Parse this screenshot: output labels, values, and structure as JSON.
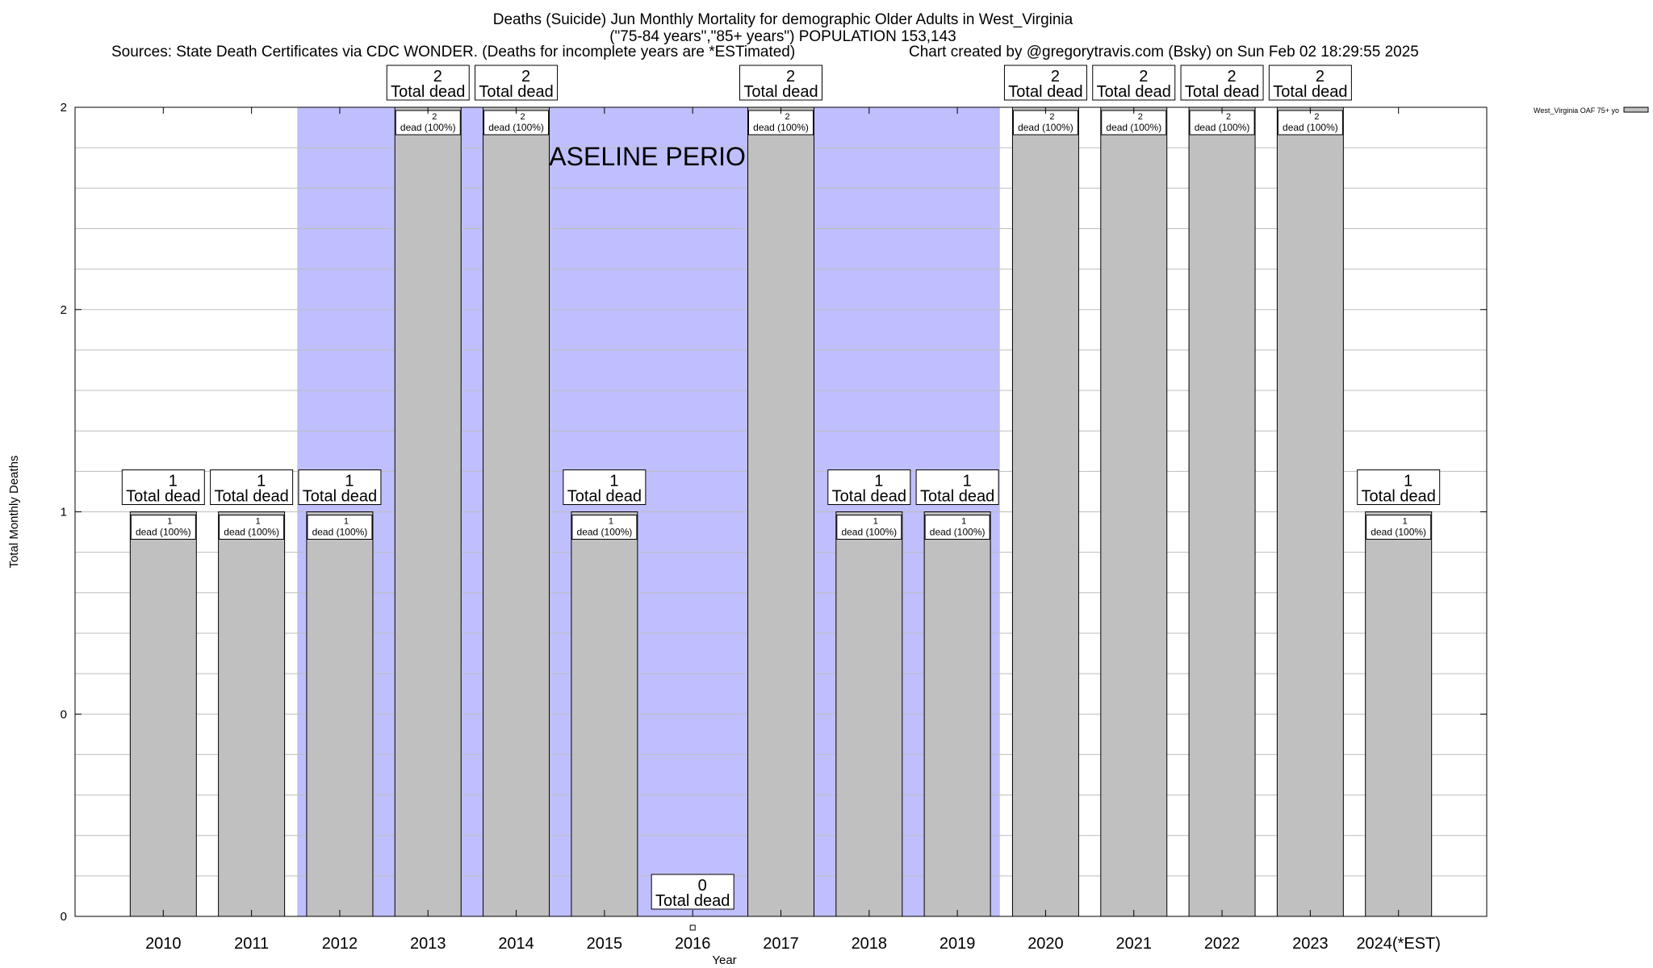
{
  "title": {
    "line1": "Deaths (Suicide) Jun Monthly Mortality for demographic Older Adults in West_Virginia",
    "line2": "(\"75-84 years\",\"85+ years\") POPULATION 153,143",
    "sources": "Sources: State Death Certificates via CDC WONDER. (Deaths for incomplete years are *ESTimated)",
    "credit": "Chart created by @gregorytravis.com (Bsky) on Sun Feb 02 18:29:55 2025"
  },
  "chart_data": {
    "type": "bar",
    "xlabel": "Year",
    "ylabel": "Total Monthly Deaths",
    "ylim": [
      0,
      2
    ],
    "y_tick_labels": [
      "0",
      "0",
      "1",
      "2",
      "2"
    ],
    "categories": [
      "2010",
      "2011",
      "2012",
      "2013",
      "2014",
      "2015",
      "2016",
      "2017",
      "2018",
      "2019",
      "2020",
      "2021",
      "2022",
      "2023",
      "2024(*EST)"
    ],
    "series": [
      {
        "name": "West_Virginia OAF 75+ yo",
        "color": "#c0c0c0",
        "values": [
          1,
          1,
          1,
          2,
          2,
          1,
          0,
          2,
          1,
          1,
          2,
          2,
          2,
          2,
          1
        ]
      }
    ],
    "total_labels": [
      "1\nTotal dead",
      "1\nTotal dead",
      "1\nTotal dead",
      "2\nTotal dead",
      "2\nTotal dead",
      "1\nTotal dead",
      "0\nTotal dead",
      "2\nTotal dead",
      "1\nTotal dead",
      "1\nTotal dead",
      "2\nTotal dead",
      "2\nTotal dead",
      "2\nTotal dead",
      "2\nTotal dead",
      "1\nTotal dead"
    ],
    "bar_labels": [
      "1\ndead (100%)",
      "1\ndead (100%)",
      "1\ndead (100%)",
      "2\ndead (100%)",
      "2\ndead (100%)",
      "1\ndead (100%)",
      "",
      "2\ndead (100%)",
      "1\ndead (100%)",
      "1\ndead (100%)",
      "2\ndead (100%)",
      "2\ndead (100%)",
      "2\ndead (100%)",
      "2\ndead (100%)",
      "1\ndead (100%)"
    ],
    "baseline": {
      "label": "BASELINE PERIOD",
      "from": "2012",
      "to": "2019",
      "color": "#bfbffe"
    },
    "grid": true,
    "legend_position": "top-right"
  }
}
